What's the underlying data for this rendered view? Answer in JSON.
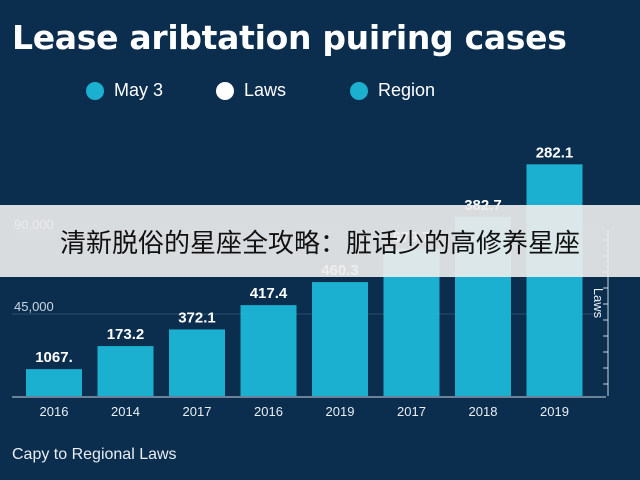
{
  "title": "Lease aribtation puiring cases",
  "legend": [
    {
      "label": "May 3",
      "color": "#1bb0cf"
    },
    {
      "label": "Laws",
      "color": "#ffffff"
    },
    {
      "label": "Region",
      "color": "#1bb0cf"
    }
  ],
  "footer": "Capy to Regional Laws",
  "overlay_text": "清新脱俗的星座全攻略：脏话少的高修养星座",
  "chart_data": {
    "type": "bar",
    "categories": [
      "2016",
      "2014",
      "2017",
      "2016",
      "2019",
      "2017",
      "2018",
      "2019"
    ],
    "values": [
      1067,
      173.2,
      372.1,
      417.4,
      460.3,
      679.7,
      382.7,
      282.1
    ],
    "data_labels": [
      "1067.",
      "173.2",
      "372.1",
      "417.4",
      "460.3",
      "679.7",
      "382.7",
      "282.1"
    ],
    "bar_heights": [
      0.21,
      0.39,
      0.52,
      0.71,
      0.89,
      1.15,
      1.4,
      1.81
    ],
    "y_ticks": [
      "45,000",
      "90,000"
    ],
    "y_tick_values": [
      45000,
      90000
    ],
    "right_axis_label": "Laws",
    "bar_color": "#1bb0cf",
    "grid": true
  }
}
